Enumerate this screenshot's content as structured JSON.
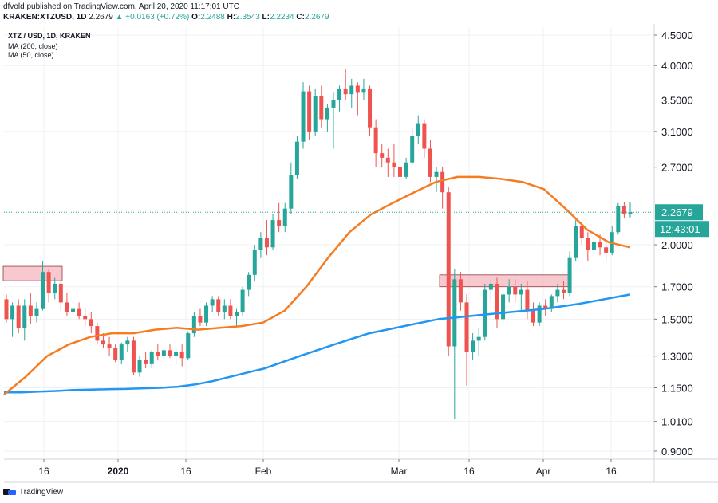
{
  "header": {
    "published": "dfvold published on TradingView.com, April 20, 2020 11:17:01 UTC",
    "symbol": "KRAKEN:XTZUSD, 1D",
    "price": "2.2679",
    "change": "▲ +0.0163 (+0.72%)",
    "o_label": "O:",
    "o_val": "2.2488",
    "h_label": "H:",
    "h_val": "2.3543",
    "l_label": "L:",
    "l_val": "2.2234",
    "c_label": "C:",
    "c_val": "2.2679"
  },
  "footer": {
    "brand": "TradingView"
  },
  "colors": {
    "up": "#26a69a",
    "down": "#ef5350",
    "ma200": "#2196f3",
    "ma50": "#f57c21",
    "box": "#f4b6bd"
  },
  "chart_data": {
    "type": "candlestick",
    "title": "XTZ / USD, 1D, KRAKEN",
    "legend": [
      "MA (200, close)",
      "MA (50, close)"
    ],
    "y_scale": "log",
    "y_ticks": [
      "4.5000",
      "4.0000",
      "3.5000",
      "3.1000",
      "2.7000",
      "2.0000",
      "1.7000",
      "1.5000",
      "1.3000",
      "1.1500",
      "1.0100",
      "0.9000"
    ],
    "x_ticks": [
      "16",
      "2020",
      "16",
      "Feb",
      "Mar",
      "16",
      "Apr",
      "16"
    ],
    "last_price_label": "2.2679",
    "countdown_label": "12:43:01",
    "candles": [
      [
        1.62,
        1.65,
        1.48,
        1.5
      ],
      [
        1.5,
        1.6,
        1.4,
        1.58
      ],
      [
        1.58,
        1.62,
        1.42,
        1.45
      ],
      [
        1.45,
        1.62,
        1.38,
        1.58
      ],
      [
        1.58,
        1.66,
        1.47,
        1.52
      ],
      [
        1.52,
        1.6,
        1.48,
        1.56
      ],
      [
        1.56,
        1.88,
        1.55,
        1.8
      ],
      [
        1.8,
        1.82,
        1.6,
        1.66
      ],
      [
        1.66,
        1.76,
        1.62,
        1.72
      ],
      [
        1.72,
        1.74,
        1.55,
        1.6
      ],
      [
        1.6,
        1.66,
        1.52,
        1.54
      ],
      [
        1.54,
        1.58,
        1.46,
        1.56
      ],
      [
        1.56,
        1.6,
        1.5,
        1.52
      ],
      [
        1.52,
        1.56,
        1.46,
        1.5
      ],
      [
        1.5,
        1.54,
        1.42,
        1.46
      ],
      [
        1.46,
        1.48,
        1.36,
        1.38
      ],
      [
        1.38,
        1.42,
        1.34,
        1.36
      ],
      [
        1.36,
        1.4,
        1.3,
        1.34
      ],
      [
        1.34,
        1.36,
        1.27,
        1.28
      ],
      [
        1.28,
        1.37,
        1.26,
        1.36
      ],
      [
        1.36,
        1.4,
        1.32,
        1.38
      ],
      [
        1.38,
        1.4,
        1.21,
        1.22
      ],
      [
        1.22,
        1.3,
        1.2,
        1.28
      ],
      [
        1.28,
        1.32,
        1.24,
        1.26
      ],
      [
        1.26,
        1.33,
        1.24,
        1.32
      ],
      [
        1.32,
        1.36,
        1.28,
        1.3
      ],
      [
        1.3,
        1.34,
        1.27,
        1.33
      ],
      [
        1.33,
        1.36,
        1.29,
        1.3
      ],
      [
        1.3,
        1.34,
        1.26,
        1.32
      ],
      [
        1.32,
        1.36,
        1.25,
        1.29
      ],
      [
        1.29,
        1.43,
        1.28,
        1.42
      ],
      [
        1.42,
        1.54,
        1.4,
        1.52
      ],
      [
        1.52,
        1.56,
        1.46,
        1.48
      ],
      [
        1.48,
        1.6,
        1.46,
        1.58
      ],
      [
        1.58,
        1.64,
        1.54,
        1.62
      ],
      [
        1.62,
        1.64,
        1.52,
        1.54
      ],
      [
        1.54,
        1.62,
        1.5,
        1.58
      ],
      [
        1.58,
        1.62,
        1.5,
        1.52
      ],
      [
        1.52,
        1.56,
        1.46,
        1.54
      ],
      [
        1.54,
        1.7,
        1.52,
        1.68
      ],
      [
        1.68,
        1.8,
        1.64,
        1.78
      ],
      [
        1.78,
        2.0,
        1.74,
        1.96
      ],
      [
        1.96,
        2.1,
        1.9,
        2.05
      ],
      [
        2.05,
        2.2,
        1.92,
        1.98
      ],
      [
        1.98,
        2.25,
        1.96,
        2.2
      ],
      [
        2.2,
        2.35,
        2.1,
        2.15
      ],
      [
        2.15,
        2.35,
        2.1,
        2.3
      ],
      [
        2.3,
        2.75,
        2.25,
        2.62
      ],
      [
        2.62,
        3.05,
        2.58,
        2.98
      ],
      [
        2.98,
        3.75,
        2.9,
        3.62
      ],
      [
        3.62,
        3.7,
        3.0,
        3.1
      ],
      [
        3.1,
        3.65,
        3.05,
        3.55
      ],
      [
        3.55,
        3.7,
        3.15,
        3.25
      ],
      [
        3.25,
        3.45,
        3.1,
        3.4
      ],
      [
        3.4,
        3.6,
        2.9,
        3.5
      ],
      [
        3.5,
        3.7,
        3.35,
        3.65
      ],
      [
        3.65,
        3.95,
        3.5,
        3.58
      ],
      [
        3.58,
        3.8,
        3.4,
        3.7
      ],
      [
        3.7,
        3.75,
        3.3,
        3.6
      ],
      [
        3.6,
        3.8,
        3.5,
        3.65
      ],
      [
        3.65,
        3.7,
        3.05,
        3.15
      ],
      [
        3.15,
        3.25,
        2.7,
        2.85
      ],
      [
        2.85,
        2.95,
        2.7,
        2.8
      ],
      [
        2.8,
        2.9,
        2.6,
        2.75
      ],
      [
        2.75,
        2.95,
        2.6,
        2.7
      ],
      [
        2.7,
        2.8,
        2.55,
        2.6
      ],
      [
        2.6,
        2.8,
        2.58,
        2.75
      ],
      [
        2.75,
        3.15,
        2.72,
        3.05
      ],
      [
        3.05,
        3.3,
        2.95,
        3.2
      ],
      [
        3.2,
        3.25,
        2.8,
        2.9
      ],
      [
        2.9,
        3.0,
        2.55,
        2.6
      ],
      [
        2.6,
        2.7,
        2.45,
        2.65
      ],
      [
        2.65,
        2.7,
        2.3,
        2.45
      ],
      [
        2.45,
        2.5,
        1.3,
        1.35
      ],
      [
        1.35,
        1.82,
        1.02,
        1.75
      ],
      [
        1.75,
        1.8,
        1.55,
        1.6
      ],
      [
        1.6,
        1.65,
        1.16,
        1.32
      ],
      [
        1.32,
        1.42,
        1.28,
        1.38
      ],
      [
        1.38,
        1.45,
        1.3,
        1.4
      ],
      [
        1.4,
        1.72,
        1.38,
        1.68
      ],
      [
        1.68,
        1.75,
        1.6,
        1.72
      ],
      [
        1.72,
        1.76,
        1.45,
        1.5
      ],
      [
        1.5,
        1.68,
        1.48,
        1.65
      ],
      [
        1.65,
        1.75,
        1.6,
        1.7
      ],
      [
        1.7,
        1.75,
        1.6,
        1.65
      ],
      [
        1.65,
        1.72,
        1.55,
        1.68
      ],
      [
        1.68,
        1.74,
        1.5,
        1.55
      ],
      [
        1.55,
        1.6,
        1.46,
        1.48
      ],
      [
        1.48,
        1.6,
        1.46,
        1.58
      ],
      [
        1.58,
        1.62,
        1.52,
        1.56
      ],
      [
        1.56,
        1.65,
        1.54,
        1.64
      ],
      [
        1.64,
        1.72,
        1.6,
        1.68
      ],
      [
        1.68,
        1.74,
        1.62,
        1.66
      ],
      [
        1.66,
        1.95,
        1.64,
        1.9
      ],
      [
        1.9,
        2.2,
        1.88,
        2.15
      ],
      [
        2.15,
        2.18,
        2.0,
        2.05
      ],
      [
        2.05,
        2.1,
        1.88,
        1.96
      ],
      [
        1.96,
        2.05,
        1.9,
        2.02
      ],
      [
        2.02,
        2.08,
        1.92,
        1.98
      ],
      [
        1.98,
        2.02,
        1.88,
        1.94
      ],
      [
        1.94,
        2.15,
        1.92,
        2.1
      ],
      [
        2.1,
        2.35,
        2.08,
        2.32
      ],
      [
        2.32,
        2.36,
        2.22,
        2.25
      ],
      [
        2.2488,
        2.3543,
        2.2234,
        2.2679
      ]
    ],
    "ma200": [
      1.13,
      1.13,
      1.133,
      1.136,
      1.14,
      1.142,
      1.144,
      1.145,
      1.148,
      1.15,
      1.155,
      1.165,
      1.18,
      1.2,
      1.22,
      1.24,
      1.27,
      1.3,
      1.33,
      1.36,
      1.39,
      1.42,
      1.44,
      1.46,
      1.48,
      1.5,
      1.51,
      1.52,
      1.53,
      1.54,
      1.55,
      1.56,
      1.575,
      1.59,
      1.61,
      1.63,
      1.65
    ],
    "ma50": [
      1.12,
      1.2,
      1.3,
      1.36,
      1.4,
      1.42,
      1.42,
      1.44,
      1.45,
      1.44,
      1.45,
      1.46,
      1.48,
      1.55,
      1.7,
      1.9,
      2.1,
      2.25,
      2.35,
      2.45,
      2.55,
      2.6,
      2.6,
      2.58,
      2.55,
      2.48,
      2.3,
      2.12,
      2.02,
      1.98
    ],
    "annotations": [
      {
        "type": "zone",
        "y_low": 1.74,
        "y_high": 1.84
      },
      {
        "type": "zone",
        "y_low": 1.7,
        "y_high": 1.78
      }
    ]
  }
}
